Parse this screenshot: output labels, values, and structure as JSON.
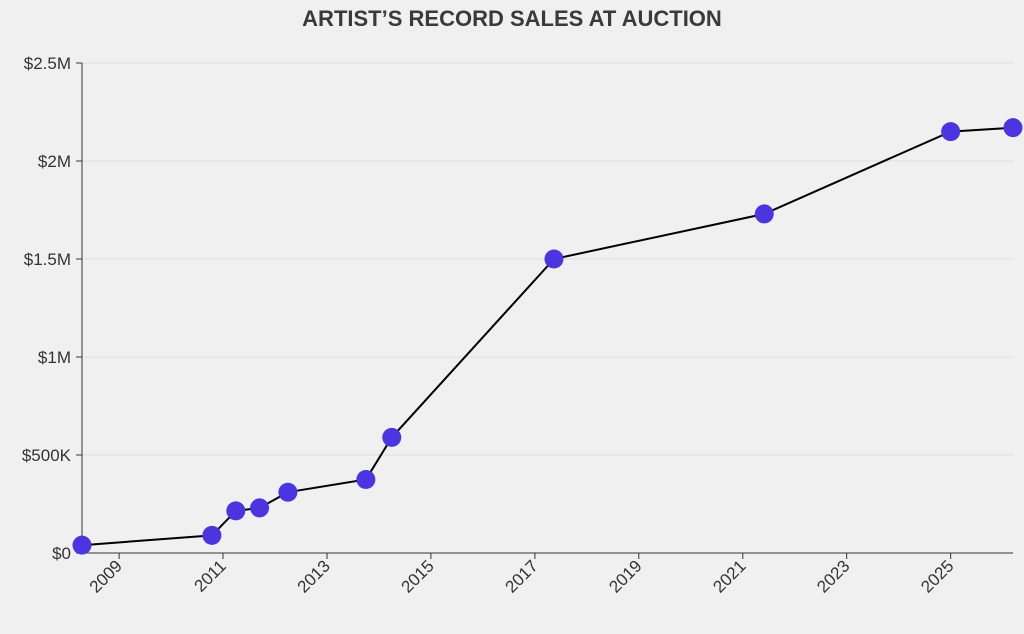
{
  "chart_data": {
    "type": "line",
    "title": "ARTIST’S RECORD SALES AT AUCTION",
    "xlabel": "",
    "ylabel": "",
    "x_axis_type": "date",
    "xlim": [
      "2008-04-15",
      "2026-03-15"
    ],
    "ylim": [
      0,
      2500000
    ],
    "x_ticks": [
      "2009",
      "2011",
      "2013",
      "2015",
      "2017",
      "2019",
      "2021",
      "2023",
      "2025"
    ],
    "y_ticks": [
      {
        "value": 0,
        "label": "$0"
      },
      {
        "value": 500000,
        "label": "$500K"
      },
      {
        "value": 1000000,
        "label": "$1M"
      },
      {
        "value": 1500000,
        "label": "$1.5M"
      },
      {
        "value": 2000000,
        "label": "$2M"
      },
      {
        "value": 2500000,
        "label": "$2.5M"
      }
    ],
    "grid": true,
    "series": [
      {
        "points": [
          {
            "x": "2008-04-15",
            "y": 40000
          },
          {
            "x": "2010-10-15",
            "y": 90000
          },
          {
            "x": "2011-04-01",
            "y": 215000
          },
          {
            "x": "2011-09-15",
            "y": 230000
          },
          {
            "x": "2012-04-01",
            "y": 310000
          },
          {
            "x": "2013-10-01",
            "y": 375000
          },
          {
            "x": "2014-04-01",
            "y": 590000
          },
          {
            "x": "2017-05-15",
            "y": 1500000
          },
          {
            "x": "2021-06-01",
            "y": 1730000
          },
          {
            "x": "2025-01-01",
            "y": 2150000
          },
          {
            "x": "2026-03-15",
            "y": 2170000
          }
        ]
      }
    ],
    "colors": {
      "line": "#000000",
      "marker": "#4b35e0",
      "background": "#f0f0f0",
      "grid": "#dedede"
    }
  }
}
